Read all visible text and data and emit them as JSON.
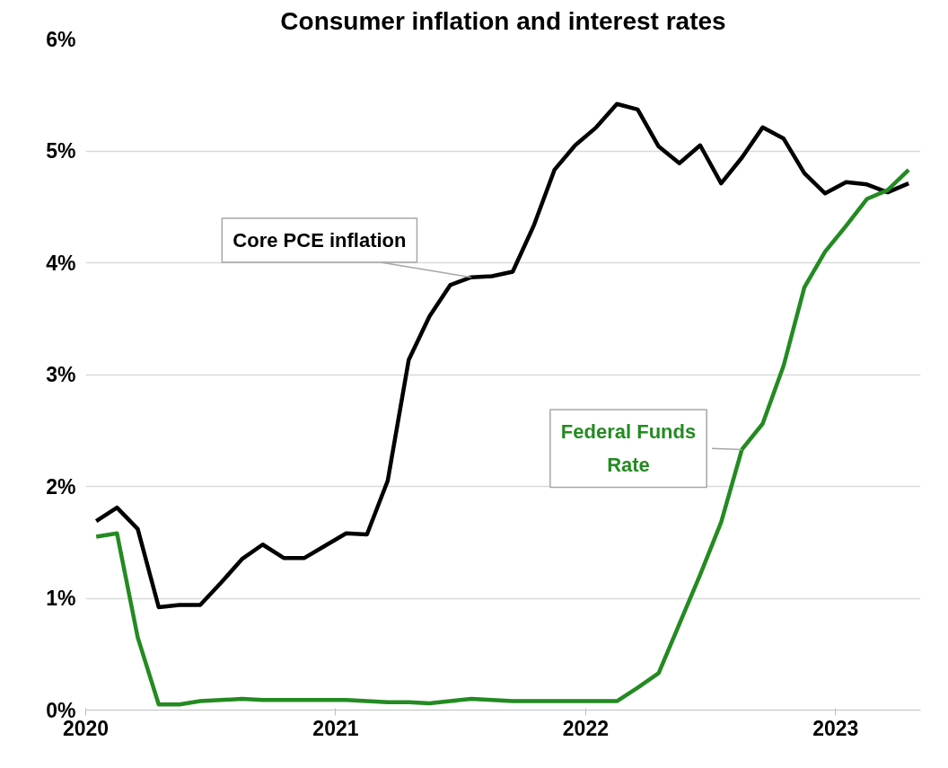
{
  "chart_data": {
    "type": "line",
    "title": "Consumer inflation and interest rates",
    "x": [
      2020.042,
      2020.125,
      2020.208,
      2020.292,
      2020.375,
      2020.458,
      2020.542,
      2020.625,
      2020.708,
      2020.792,
      2020.875,
      2020.958,
      2021.042,
      2021.125,
      2021.208,
      2021.292,
      2021.375,
      2021.458,
      2021.542,
      2021.625,
      2021.708,
      2021.792,
      2021.875,
      2021.958,
      2022.042,
      2022.125,
      2022.208,
      2022.292,
      2022.375,
      2022.458,
      2022.542,
      2022.625,
      2022.708,
      2022.792,
      2022.875,
      2022.958,
      2023.042,
      2023.125,
      2023.208,
      2023.292
    ],
    "series": [
      {
        "name": "Core PCE inflation",
        "color": "#000000",
        "values": [
          1.69,
          1.81,
          1.62,
          0.92,
          0.94,
          0.94,
          1.14,
          1.35,
          1.48,
          1.36,
          1.36,
          1.47,
          1.58,
          1.57,
          2.05,
          3.13,
          3.52,
          3.8,
          3.87,
          3.88,
          3.92,
          4.33,
          4.83,
          5.05,
          5.21,
          5.42,
          5.37,
          5.04,
          4.89,
          5.05,
          4.71,
          4.94,
          5.21,
          5.11,
          4.8,
          4.62,
          4.72,
          4.7,
          4.63,
          4.71
        ]
      },
      {
        "name": "Federal Funds Rate",
        "color": "#238b21",
        "values": [
          1.55,
          1.58,
          0.65,
          0.05,
          0.05,
          0.08,
          0.09,
          0.1,
          0.09,
          0.09,
          0.09,
          0.09,
          0.09,
          0.08,
          0.07,
          0.07,
          0.06,
          0.08,
          0.1,
          0.09,
          0.08,
          0.08,
          0.08,
          0.08,
          0.08,
          0.08,
          0.2,
          0.33,
          0.77,
          1.21,
          1.68,
          2.33,
          2.56,
          3.08,
          3.78,
          4.1,
          4.33,
          4.57,
          4.65,
          4.83
        ]
      }
    ],
    "xlim": [
      2020,
      2023.34
    ],
    "xticks": [
      2020,
      2021,
      2022,
      2023
    ],
    "ylim": [
      0,
      6
    ],
    "yticks": [
      {
        "value": 0,
        "label": "0%"
      },
      {
        "value": 1,
        "label": "1%"
      },
      {
        "value": 2,
        "label": "2%"
      },
      {
        "value": 3,
        "label": "3%"
      },
      {
        "value": 4,
        "label": "4%"
      },
      {
        "value": 5,
        "label": "5%"
      },
      {
        "value": 6,
        "label": "6%"
      }
    ],
    "grid": "y",
    "legend": false,
    "marker": "none",
    "line_style": "solid"
  }
}
